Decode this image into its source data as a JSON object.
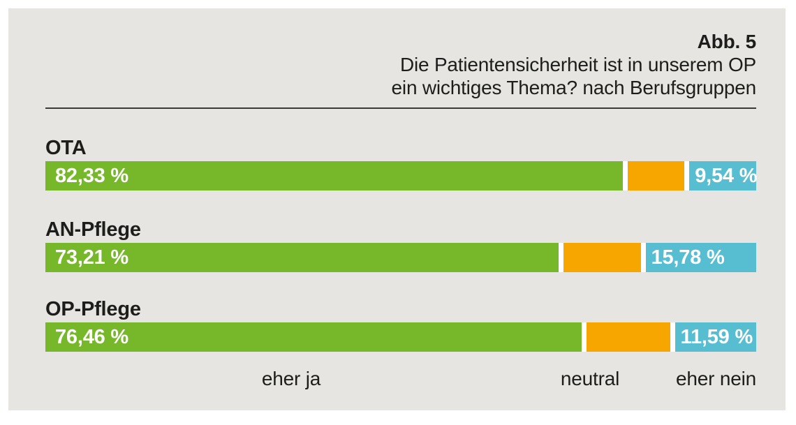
{
  "figure": {
    "label": "Abb. 5",
    "title_line1": "Die Patientensicherheit ist in unserem OP",
    "title_line2": "ein wichtiges Thema? nach Berufsgruppen"
  },
  "chart_data": {
    "type": "bar",
    "orientation": "horizontal",
    "stacked": true,
    "unit": "%",
    "xlim": [
      0,
      100
    ],
    "grid": false,
    "categories": [
      "OTA",
      "AN-Pflege",
      "OP-Pflege"
    ],
    "series": [
      {
        "name": "eher ja",
        "values": [
          82.33,
          73.21,
          76.46
        ]
      },
      {
        "name": "neutral",
        "values": [
          8.13,
          11.01,
          11.95
        ]
      },
      {
        "name": "eher nein",
        "values": [
          9.54,
          15.78,
          11.59
        ]
      }
    ],
    "value_labels": {
      "ja": [
        "82,33 %",
        "73,21 %",
        "76,46 %"
      ],
      "nein": [
        "9,54 %",
        "15,78 %",
        "11,59 %"
      ]
    },
    "axis_labels": [
      "eher ja",
      "neutral",
      "eher nein"
    ],
    "colors": {
      "eher_ja": "#76b82a",
      "neutral": "#f7a600",
      "eher_nein": "#57bed2",
      "bar_gap": "#ffffff",
      "panel_background": "#e7e5e1",
      "text": "#1d1d1b",
      "rule": "#3a3a39"
    }
  }
}
